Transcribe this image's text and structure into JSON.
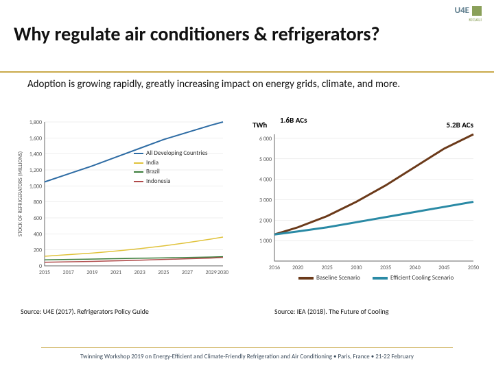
{
  "logo": {
    "text": "U4E",
    "sub": "KIGALI"
  },
  "title": "Why regulate air conditioners & refrigerators?",
  "subtitle": "Adoption is growing rapidly, greatly increasing impact on energy grids, climate, and more.",
  "left_chart": {
    "type": "line",
    "ylabel": "STOCK OF REFRIGERATORS (MILLIONS)",
    "ylim": [
      0,
      1800
    ],
    "ytick_step": 200,
    "xlim": [
      2015,
      2030
    ],
    "xticks": [
      2015,
      2017,
      2019,
      2021,
      2023,
      2025,
      2027,
      2029,
      2030
    ],
    "series": [
      {
        "name": "All Developing Countries",
        "color": "#2e6ca4",
        "width": 2,
        "points": [
          [
            2015,
            1050
          ],
          [
            2017,
            1150
          ],
          [
            2019,
            1250
          ],
          [
            2021,
            1360
          ],
          [
            2023,
            1470
          ],
          [
            2025,
            1580
          ],
          [
            2027,
            1670
          ],
          [
            2029,
            1760
          ],
          [
            2030,
            1800
          ]
        ]
      },
      {
        "name": "India",
        "color": "#e0c23a",
        "width": 1.5,
        "points": [
          [
            2015,
            120
          ],
          [
            2017,
            140
          ],
          [
            2019,
            160
          ],
          [
            2021,
            185
          ],
          [
            2023,
            215
          ],
          [
            2025,
            250
          ],
          [
            2027,
            290
          ],
          [
            2029,
            335
          ],
          [
            2030,
            360
          ]
        ]
      },
      {
        "name": "Brazil",
        "color": "#3a7d3a",
        "width": 1.5,
        "points": [
          [
            2015,
            75
          ],
          [
            2017,
            80
          ],
          [
            2019,
            85
          ],
          [
            2021,
            90
          ],
          [
            2023,
            95
          ],
          [
            2025,
            100
          ],
          [
            2027,
            105
          ],
          [
            2029,
            110
          ],
          [
            2030,
            115
          ]
        ]
      },
      {
        "name": "Indonesia",
        "color": "#b04a4a",
        "width": 1.5,
        "points": [
          [
            2015,
            45
          ],
          [
            2017,
            50
          ],
          [
            2019,
            56
          ],
          [
            2021,
            63
          ],
          [
            2023,
            71
          ],
          [
            2025,
            80
          ],
          [
            2027,
            89
          ],
          [
            2029,
            98
          ],
          [
            2030,
            105
          ]
        ]
      }
    ],
    "axis_color": "#666666",
    "grid_color": "#dcdcdc",
    "tick_fontsize": 8,
    "label_fontsize": 8,
    "source": "Source: U4E (2017). Refrigerators Policy Guide"
  },
  "right_chart": {
    "type": "line",
    "ylabel_annot": "TWh",
    "annot_left": "1.6B ACs",
    "annot_right": "5.2B ACs",
    "ylim": [
      0,
      6000
    ],
    "ytick_step": 1000,
    "extra_top_tick": 6200,
    "xlim": [
      2016,
      2050
    ],
    "xticks": [
      2016,
      2020,
      2025,
      2030,
      2035,
      2040,
      2045,
      2050
    ],
    "series": [
      {
        "name": "Baseline Scenario",
        "color": "#6b3a1a",
        "width": 3,
        "points": [
          [
            2016,
            1300
          ],
          [
            2020,
            1650
          ],
          [
            2025,
            2200
          ],
          [
            2030,
            2900
          ],
          [
            2035,
            3700
          ],
          [
            2040,
            4600
          ],
          [
            2045,
            5500
          ],
          [
            2050,
            6200
          ]
        ]
      },
      {
        "name": "Efficient Cooling Scenario",
        "color": "#2a8aa5",
        "width": 3,
        "points": [
          [
            2016,
            1300
          ],
          [
            2020,
            1450
          ],
          [
            2025,
            1650
          ],
          [
            2030,
            1900
          ],
          [
            2035,
            2150
          ],
          [
            2040,
            2400
          ],
          [
            2045,
            2650
          ],
          [
            2050,
            2900
          ]
        ]
      }
    ],
    "axis_color": "#666666",
    "grid_color": "#dcdcdc",
    "tick_fontsize": 8,
    "legend": [
      "Baseline Scenario",
      "Efficient Cooling Scenario"
    ],
    "source": "Source: IEA (2018). The Future of Cooling"
  },
  "footer": "Twinning Workshop 2019 on Energy-Efficient and Climate-Friendly Refrigeration and Air Conditioning • Paris, France • 21-22 February"
}
